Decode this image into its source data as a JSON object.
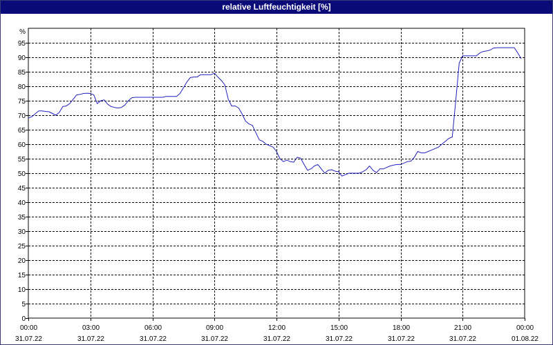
{
  "window": {
    "title": "relative Luftfeuchtigkeit [%]"
  },
  "colors": {
    "title_bar": "#0a0a78",
    "series_line": "#1f1fbf",
    "grid": "#000000",
    "background": "#ffffff"
  },
  "chart_data": {
    "type": "line",
    "title": "relative Luftfeuchtigkeit [%]",
    "ylabel": "%",
    "xlabel": "",
    "ylim": [
      0,
      100
    ],
    "grid": true,
    "y_ticks": [
      0,
      5,
      10,
      15,
      20,
      25,
      30,
      35,
      40,
      45,
      50,
      55,
      60,
      65,
      70,
      75,
      80,
      85,
      90,
      95
    ],
    "x_ticks": [
      {
        "time": "00:00",
        "date": "31.07.22"
      },
      {
        "time": "03:00",
        "date": "31.07.22"
      },
      {
        "time": "06:00",
        "date": "31.07.22"
      },
      {
        "time": "09:00",
        "date": "31.07.22"
      },
      {
        "time": "12:00",
        "date": "31.07.22"
      },
      {
        "time": "15:00",
        "date": "31.07.22"
      },
      {
        "time": "18:00",
        "date": "31.07.22"
      },
      {
        "time": "21:00",
        "date": "31.07.22"
      },
      {
        "time": "00:00",
        "date": "01.08.22"
      }
    ],
    "x_range": [
      "31.07.22 00:00",
      "01.08.22 00:00"
    ],
    "series": [
      {
        "x": [
          "31.07.22 00:00",
          "31.07.22 00:10",
          "31.07.22 00:20",
          "31.07.22 00:30",
          "31.07.22 00:40",
          "31.07.22 00:50",
          "31.07.22 01:00",
          "31.07.22 01:10",
          "31.07.22 01:20",
          "31.07.22 01:30",
          "31.07.22 01:40",
          "31.07.22 01:50",
          "31.07.22 02:00",
          "31.07.22 02:10",
          "31.07.22 02:20",
          "31.07.22 02:30",
          "31.07.22 02:40",
          "31.07.22 02:50",
          "31.07.22 03:00",
          "31.07.22 03:10",
          "31.07.22 03:20",
          "31.07.22 03:30",
          "31.07.22 03:40",
          "31.07.22 03:50",
          "31.07.22 04:00",
          "31.07.22 04:10",
          "31.07.22 04:20",
          "31.07.22 04:30",
          "31.07.22 04:40",
          "31.07.22 04:50",
          "31.07.22 05:00",
          "31.07.22 05:10",
          "31.07.22 05:20",
          "31.07.22 05:30",
          "31.07.22 05:40",
          "31.07.22 05:50",
          "31.07.22 06:00",
          "31.07.22 06:10",
          "31.07.22 06:20",
          "31.07.22 06:30",
          "31.07.22 06:40",
          "31.07.22 06:50",
          "31.07.22 07:00",
          "31.07.22 07:10",
          "31.07.22 07:20",
          "31.07.22 07:30",
          "31.07.22 07:40",
          "31.07.22 07:50",
          "31.07.22 08:00",
          "31.07.22 08:10",
          "31.07.22 08:20",
          "31.07.22 08:30",
          "31.07.22 08:40",
          "31.07.22 08:50",
          "31.07.22 09:00",
          "31.07.22 09:10",
          "31.07.22 09:20",
          "31.07.22 09:30",
          "31.07.22 09:40",
          "31.07.22 09:50",
          "31.07.22 10:00",
          "31.07.22 10:10",
          "31.07.22 10:20",
          "31.07.22 10:30",
          "31.07.22 10:40",
          "31.07.22 10:50",
          "31.07.22 11:00",
          "31.07.22 11:10",
          "31.07.22 11:20",
          "31.07.22 11:30",
          "31.07.22 11:40",
          "31.07.22 11:50",
          "31.07.22 12:00",
          "31.07.22 12:10",
          "31.07.22 12:20",
          "31.07.22 12:30",
          "31.07.22 12:40",
          "31.07.22 12:50",
          "31.07.22 13:00",
          "31.07.22 13:10",
          "31.07.22 13:20",
          "31.07.22 13:30",
          "31.07.22 13:40",
          "31.07.22 13:50",
          "31.07.22 14:00",
          "31.07.22 14:10",
          "31.07.22 14:20",
          "31.07.22 14:30",
          "31.07.22 14:40",
          "31.07.22 14:50",
          "31.07.22 15:00",
          "31.07.22 15:10",
          "31.07.22 15:20",
          "31.07.22 15:30",
          "31.07.22 15:40",
          "31.07.22 15:50",
          "31.07.22 16:00",
          "31.07.22 16:10",
          "31.07.22 16:20",
          "31.07.22 16:30",
          "31.07.22 16:40",
          "31.07.22 16:50",
          "31.07.22 17:00",
          "31.07.22 17:10",
          "31.07.22 17:20",
          "31.07.22 17:30",
          "31.07.22 17:40",
          "31.07.22 17:50",
          "31.07.22 18:00",
          "31.07.22 18:10",
          "31.07.22 18:20",
          "31.07.22 18:30",
          "31.07.22 18:40",
          "31.07.22 18:50",
          "31.07.22 19:00",
          "31.07.22 19:10",
          "31.07.22 19:20",
          "31.07.22 19:30",
          "31.07.22 19:40",
          "31.07.22 19:50",
          "31.07.22 20:00",
          "31.07.22 20:10",
          "31.07.22 20:20",
          "31.07.22 20:30",
          "31.07.22 20:40",
          "31.07.22 20:50",
          "31.07.22 21:00",
          "31.07.22 21:10",
          "31.07.22 21:20",
          "31.07.22 21:30",
          "31.07.22 21:40",
          "31.07.22 21:50",
          "31.07.22 22:00",
          "31.07.22 22:10",
          "31.07.22 22:20",
          "31.07.22 22:30",
          "31.07.22 22:40",
          "31.07.22 22:50",
          "31.07.22 23:00",
          "31.07.22 23:10",
          "31.07.22 23:20",
          "31.07.22 23:30",
          "31.07.22 23:40",
          "31.07.22 23:50"
        ],
        "values": [
          69,
          69.5,
          70.5,
          71.5,
          71.5,
          71.3,
          71.2,
          70.6,
          70,
          71,
          73,
          73.2,
          74,
          75.5,
          77,
          77.2,
          77.5,
          77.6,
          77.5,
          77,
          74,
          75,
          75.3,
          73.8,
          73,
          72.7,
          72.5,
          72.7,
          73.5,
          75,
          76,
          76.2,
          76.2,
          76.2,
          76.2,
          76.2,
          76.2,
          76.2,
          76.2,
          76.2,
          76.5,
          76.5,
          76.5,
          76.5,
          77.5,
          79.5,
          81.5,
          83,
          83.2,
          83.2,
          84,
          84,
          84,
          84,
          84.5,
          83.2,
          82,
          80.5,
          75.5,
          73.2,
          73.2,
          72.5,
          70.5,
          68,
          67,
          66.5,
          64,
          61.5,
          61,
          60,
          59.5,
          59,
          57.5,
          55,
          54,
          54.5,
          54,
          53.8,
          55.5,
          55.2,
          53,
          51,
          51.5,
          52.5,
          53,
          51.5,
          50,
          51,
          51.2,
          50.7,
          50.5,
          49,
          49.5,
          50,
          50,
          50,
          50,
          50.5,
          51.2,
          52.5,
          51,
          50.2,
          51.5,
          51.5,
          52,
          52.5,
          52.8,
          53,
          53,
          53.5,
          54,
          54.2,
          55.5,
          57.5,
          57,
          57,
          57.5,
          58,
          58.5,
          59,
          60,
          61,
          62,
          62.5,
          75,
          88,
          90.5,
          90.5,
          90.5,
          90.5,
          90.5,
          91.5,
          92,
          92.2,
          92.5,
          93.2,
          93.3,
          93.3,
          93.3,
          93.3,
          93.3,
          93.3,
          91.5,
          89.5
        ]
      }
    ]
  }
}
